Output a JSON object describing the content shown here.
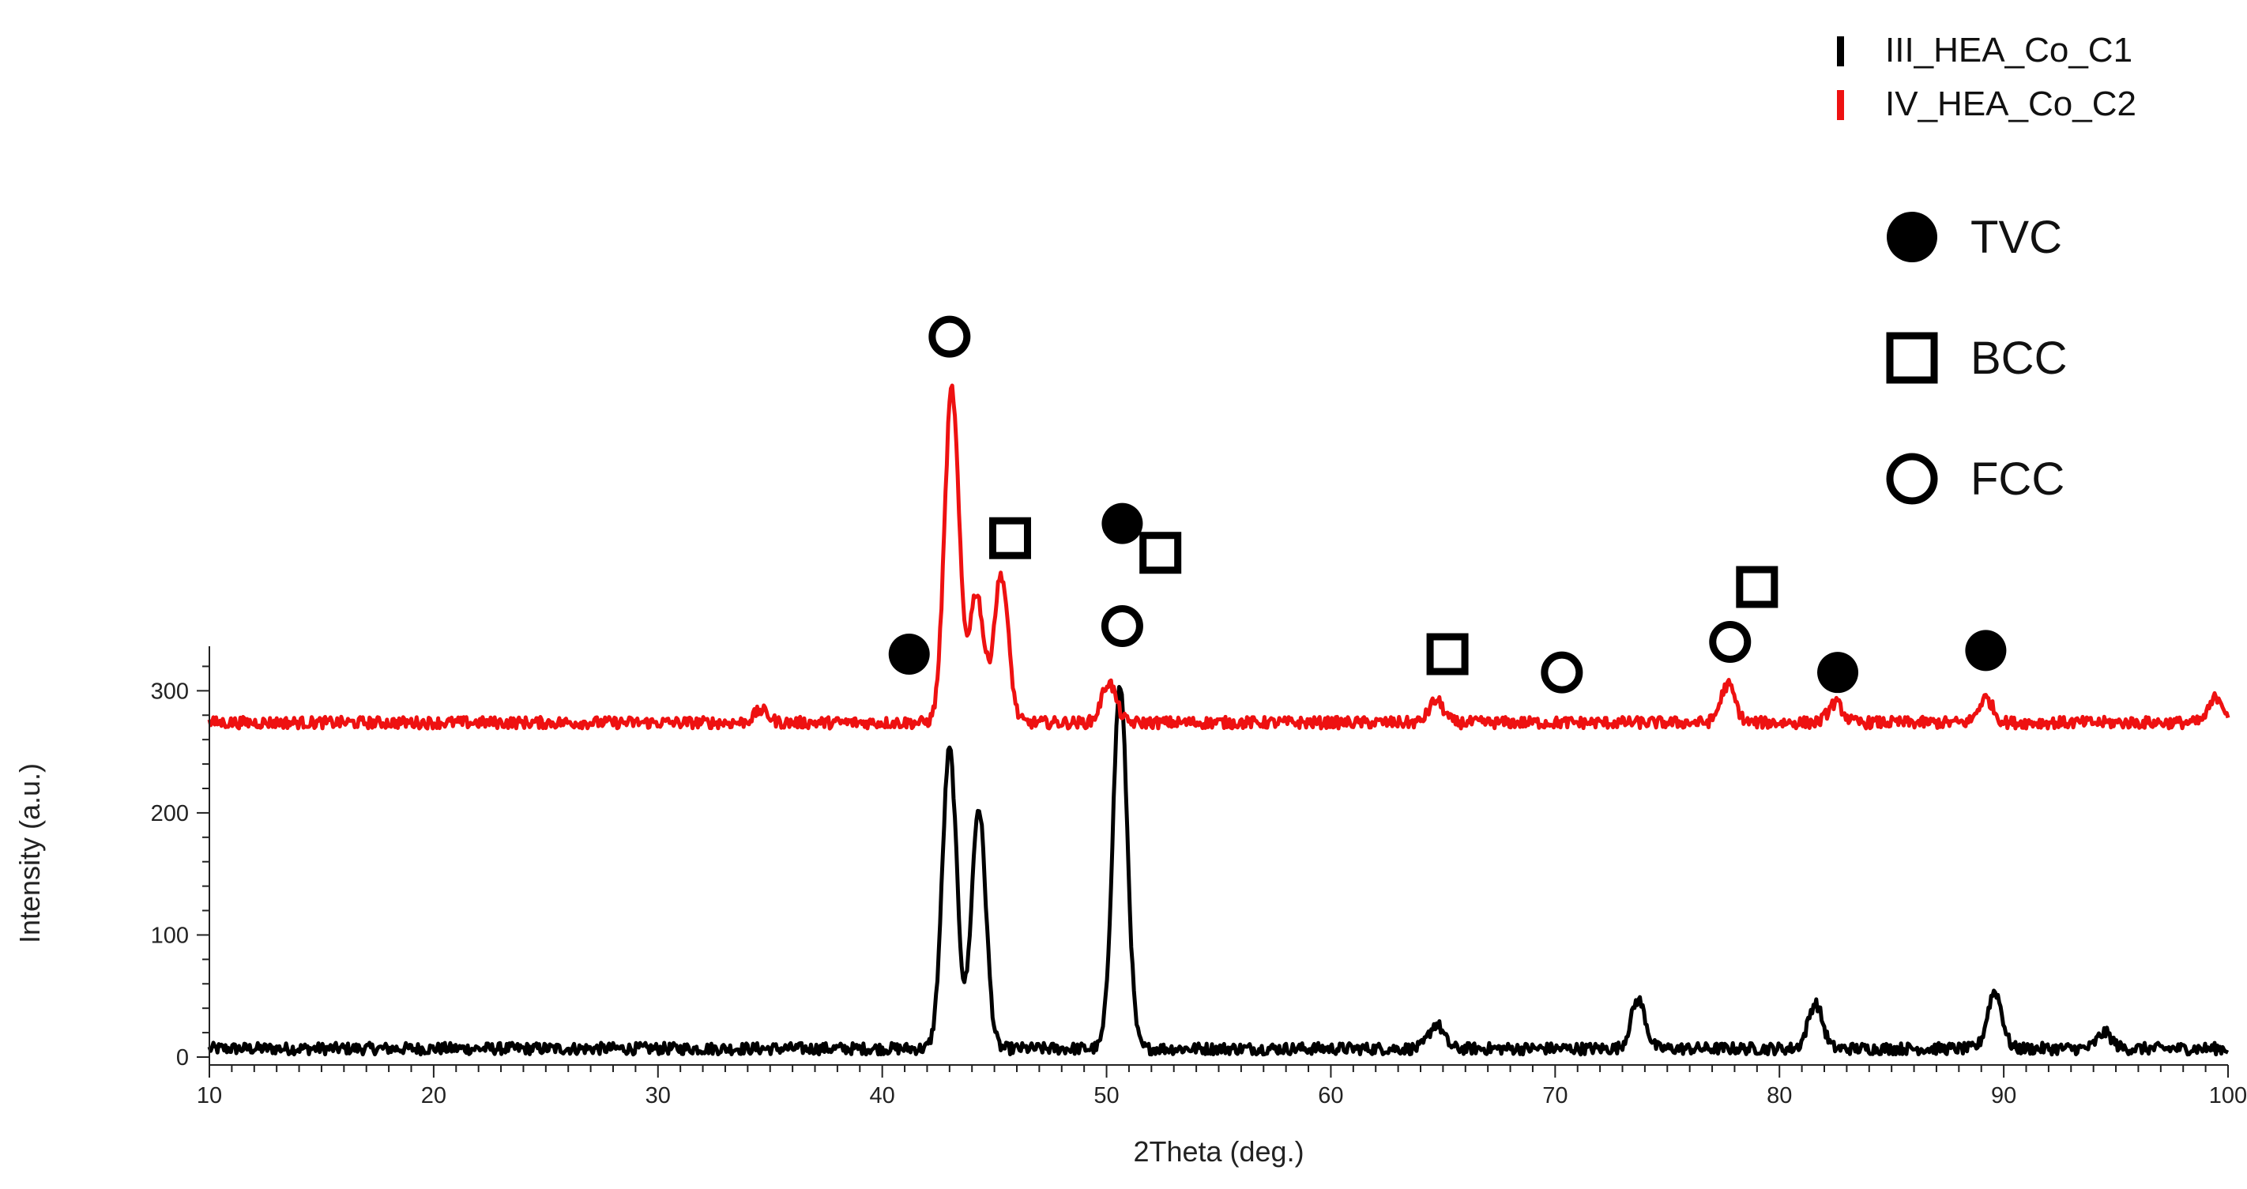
{
  "chart_data": {
    "type": "line",
    "xlabel": "2Theta (deg.)",
    "ylabel": "Intensity (a.u.)",
    "xlim": [
      10,
      100
    ],
    "ylim": [
      0,
      330
    ],
    "xticks": [
      10,
      20,
      30,
      40,
      50,
      60,
      70,
      80,
      90,
      100
    ],
    "yticks": [
      0,
      100,
      200,
      300
    ],
    "grid": false,
    "legend": {
      "placement": "top-right"
    },
    "series": [
      {
        "name": "III_HEA_Co_C1",
        "color": "#000000",
        "baseline": 5,
        "noise_amplitude": 6,
        "peaks": [
          {
            "two_theta": 43.0,
            "intensity": 250
          },
          {
            "two_theta": 44.3,
            "intensity": 202
          },
          {
            "two_theta": 50.6,
            "intensity": 302
          },
          {
            "two_theta": 64.7,
            "intensity": 25
          },
          {
            "two_theta": 73.7,
            "intensity": 45
          },
          {
            "two_theta": 81.6,
            "intensity": 42
          },
          {
            "two_theta": 89.6,
            "intensity": 52
          },
          {
            "two_theta": 94.5,
            "intensity": 18
          }
        ]
      },
      {
        "name": "IV_HEA_Co_C2",
        "color": "#ee1111",
        "baseline": 272,
        "noise_amplitude": 6,
        "peaks": [
          {
            "two_theta": 34.6,
            "intensity": 282
          },
          {
            "two_theta": 43.1,
            "intensity": 545
          },
          {
            "two_theta": 44.2,
            "intensity": 378
          },
          {
            "two_theta": 45.3,
            "intensity": 393
          },
          {
            "two_theta": 50.1,
            "intensity": 305
          },
          {
            "two_theta": 64.7,
            "intensity": 290
          },
          {
            "two_theta": 77.7,
            "intensity": 303
          },
          {
            "two_theta": 82.5,
            "intensity": 288
          },
          {
            "two_theta": 89.2,
            "intensity": 292
          },
          {
            "two_theta": 99.5,
            "intensity": 293
          }
        ]
      }
    ],
    "phase_legend": [
      {
        "symbol": "filled-circle",
        "label": "TVC"
      },
      {
        "symbol": "open-square",
        "label": "BCC"
      },
      {
        "symbol": "open-circle",
        "label": "FCC"
      }
    ],
    "phase_markers": [
      {
        "symbol": "filled-circle",
        "two_theta": 41.2,
        "intensity": 330
      },
      {
        "symbol": "open-circle",
        "two_theta": 43.0,
        "intensity": 590
      },
      {
        "symbol": "open-square",
        "two_theta": 45.7,
        "intensity": 425
      },
      {
        "symbol": "filled-circle",
        "two_theta": 50.7,
        "intensity": 437
      },
      {
        "symbol": "open-circle",
        "two_theta": 50.7,
        "intensity": 353
      },
      {
        "symbol": "open-square",
        "two_theta": 52.4,
        "intensity": 413
      },
      {
        "symbol": "open-square",
        "two_theta": 65.2,
        "intensity": 330
      },
      {
        "symbol": "open-circle",
        "two_theta": 70.3,
        "intensity": 315
      },
      {
        "symbol": "open-circle",
        "two_theta": 77.8,
        "intensity": 340
      },
      {
        "symbol": "open-square",
        "two_theta": 79.0,
        "intensity": 385
      },
      {
        "symbol": "filled-circle",
        "two_theta": 82.6,
        "intensity": 315
      },
      {
        "symbol": "filled-circle",
        "two_theta": 89.2,
        "intensity": 333
      }
    ]
  }
}
